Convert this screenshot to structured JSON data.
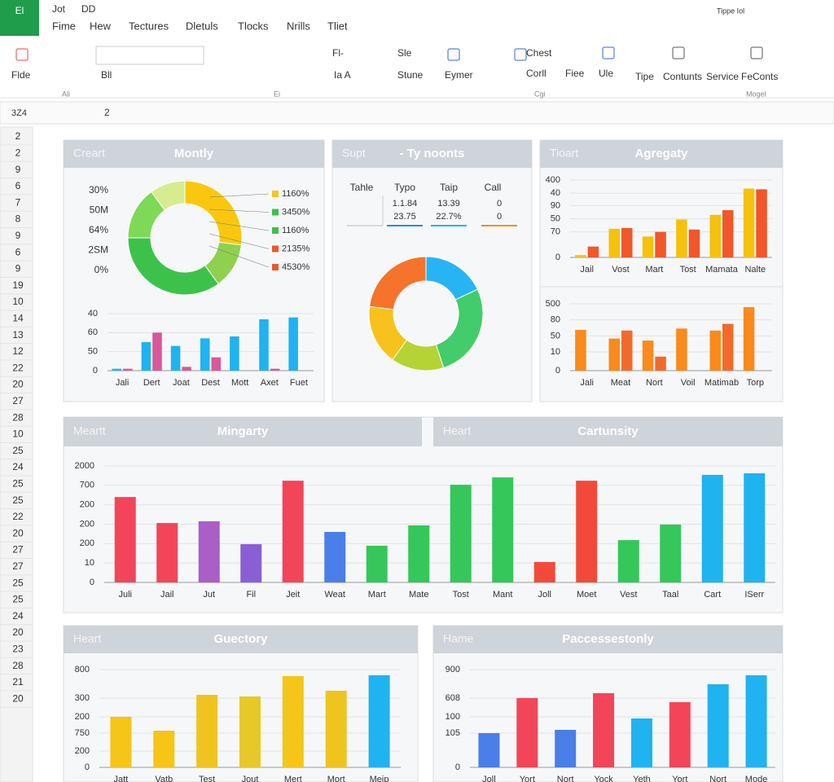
{
  "app": {
    "logo": "El",
    "quick1": "Jot",
    "quick2": "DD",
    "account": "Tippe Iol",
    "menu": [
      "Fime",
      "Hew",
      "Tectures",
      "Dletuls",
      "Tlocks",
      "Nrills",
      "Tliet"
    ],
    "ribbon": [
      "Flde",
      "Bll",
      "Fl-",
      "Sle",
      "Ia A",
      "Stune",
      "Eymer",
      "Chest",
      "Corll",
      "Fiee",
      "Ule",
      "Tipe",
      "Contunts",
      "Service",
      "FeConts"
    ],
    "group_labels": [
      "Ali",
      "Ei",
      "Cgi",
      "Mogel"
    ],
    "name_box": "3Z4",
    "formula": "2"
  },
  "rows": [
    "2",
    "2",
    "9",
    "6",
    "7",
    "8",
    "9",
    "6",
    "9",
    "19",
    "10",
    "14",
    "13",
    "12",
    "22",
    "20",
    "27",
    "28",
    "10",
    "25",
    "24",
    "25",
    "25",
    "22",
    "20",
    "27",
    "27",
    "25",
    "25",
    "24",
    "20",
    "23",
    "28",
    "21",
    "20"
  ],
  "panels": [
    {
      "label": "Creart",
      "title": "Montly"
    },
    {
      "label": "Supt",
      "title": "- Ty noonts"
    },
    {
      "label": "Tioart",
      "title": "Agregaty"
    },
    {
      "label": "Meartt",
      "title": "Mingarty"
    },
    {
      "label": "Heart",
      "title": "Cartunsity"
    },
    {
      "label": "Heart",
      "title": "Guectory"
    },
    {
      "label": "Hame",
      "title": "Paccessestonly"
    }
  ],
  "table": {
    "header": [
      "Tahle",
      "Typo",
      "Taip",
      "Call"
    ],
    "rows": [
      [
        "1.1.84",
        "13.39",
        "0"
      ],
      [
        "23.75",
        "22.7%",
        "0"
      ]
    ]
  },
  "chart_data": [
    {
      "type": "pie",
      "categories": [
        "1160%",
        "3450%",
        "1160%",
        "2135%",
        "4530%"
      ],
      "values": [
        27,
        13,
        35,
        15,
        10
      ],
      "colors": [
        "#f9c80e",
        "#8fd14f",
        "#3cc24a",
        "#7ed957",
        "#d7ec8f"
      ],
      "legend_colors": [
        "#f5c518",
        "#3cc24a",
        "#3cc24a",
        "#f0572a",
        "#f0572a"
      ],
      "side_labels": [
        "30%",
        "50M",
        "64%",
        "2SM",
        "0%"
      ]
    },
    {
      "type": "bar",
      "categories": [
        "Jali",
        "Dert",
        "Joat",
        "Dest",
        "Mott",
        "Axet",
        "Fuet"
      ],
      "series": [
        {
          "color": "#1fb3f0",
          "values": [
            1,
            15,
            13,
            17,
            18,
            27,
            28
          ]
        },
        {
          "color": "#d9579b",
          "values": [
            1,
            20,
            2,
            7,
            null,
            1,
            null
          ]
        }
      ],
      "ylim": [
        0,
        30
      ],
      "yticks": [
        {
          "value": 30,
          "label": "40"
        },
        {
          "value": 20,
          "label": "60"
        },
        {
          "value": 10,
          "label": "50"
        },
        0
      ],
      "grid": true
    },
    {
      "type": "pie",
      "values": [
        18,
        27,
        15,
        17,
        23
      ],
      "colors": [
        "#27b4f5",
        "#43cc6b",
        "#b5d334",
        "#f6c21b",
        "#f5732a"
      ]
    },
    {
      "type": "bar",
      "categories": [
        "Jail",
        "Vost",
        "Mart",
        "Tost",
        "Mamata",
        "Nalte"
      ],
      "series": [
        {
          "color": "#f4c20d",
          "values": [
            3,
            37,
            27,
            49,
            55,
            89
          ]
        },
        {
          "color": "#f0572a",
          "values": [
            14,
            38,
            33,
            36,
            61,
            88
          ]
        }
      ],
      "ylim": [
        0,
        100
      ],
      "yticks": [
        {
          "value": 100,
          "label": "400"
        },
        {
          "value": 83,
          "label": "40"
        },
        {
          "value": 67,
          "label": "90"
        },
        50,
        {
          "value": 33,
          "label": "70"
        },
        0
      ],
      "grid": true
    },
    {
      "type": "bar",
      "categories": [
        "Jali",
        "Meat",
        "Nort",
        "Voil",
        "Matimab",
        "Torp"
      ],
      "series": [
        {
          "color": "#f98a1c",
          "values": [
            61,
            48,
            45,
            63,
            60,
            95
          ]
        },
        {
          "color": "#f26a2a",
          "values": [
            null,
            60,
            21,
            null,
            70,
            null
          ]
        }
      ],
      "ylim": [
        0,
        100
      ],
      "yticks": [
        {
          "value": 100,
          "label": "500"
        },
        {
          "value": 76,
          "label": "80"
        },
        {
          "value": 52,
          "label": "50"
        },
        {
          "value": 28,
          "label": "10"
        },
        0
      ],
      "grid": true
    },
    {
      "type": "bar",
      "categories": [
        "Juli",
        "Jail",
        "Jut",
        "Fil",
        "Jeit",
        "Weat",
        "Mart",
        "Mate",
        "Tost",
        "Mant",
        "Joll",
        "Moet",
        "Vest",
        "Taal",
        "Cart",
        "ISerr"
      ],
      "series": [
        {
          "values": [
            440,
            306,
            315,
            197,
            524,
            260,
            189,
            294,
            503,
            541,
            105,
            524,
            218,
            298,
            554,
            562
          ],
          "colors": [
            "#f2455a",
            "#f2455a",
            "#a95fc6",
            "#8a5fd6",
            "#f2455a",
            "#4a7ee8",
            "#35c75a",
            "#35c75a",
            "#35c75a",
            "#35c75a",
            "#f24a3a",
            "#f24a3a",
            "#35c75a",
            "#35c75a",
            "#1fb3f0",
            "#1fb3f0"
          ]
        }
      ],
      "ylim": [
        0,
        600
      ],
      "yticks": [
        {
          "value": 600,
          "label": "2000"
        },
        {
          "value": 500,
          "label": "700"
        },
        {
          "value": 400,
          "label": "200"
        },
        {
          "value": 300,
          "label": "200"
        },
        {
          "value": 200,
          "label": "200"
        },
        {
          "value": 100,
          "label": "10"
        },
        0
      ],
      "grid": true
    },
    {
      "type": "bar",
      "categories": [
        "Jatt",
        "Vatb",
        "Test",
        "Jout",
        "Mert",
        "Mort",
        "Meip"
      ],
      "series": [
        {
          "values": [
            310,
            225,
            445,
            435,
            560,
            470,
            565
          ],
          "colors": [
            "#f5c518",
            "#f5c518",
            "#f0c420",
            "#e8c828",
            "#f5c518",
            "#eec41e",
            "#1fb3f0"
          ]
        }
      ],
      "ylim": [
        0,
        600
      ],
      "yticks": [
        {
          "value": 600,
          "label": "800"
        },
        {
          "value": 425,
          "label": "300"
        },
        {
          "value": 310,
          "label": "200"
        },
        {
          "value": 210,
          "label": "750"
        },
        {
          "value": 100,
          "label": "200"
        },
        0
      ],
      "grid": true
    },
    {
      "type": "bar",
      "categories": [
        "Joll",
        "Yort",
        "Nort",
        "Yock",
        "Yeth",
        "Yort",
        "Nort",
        "Mode"
      ],
      "series": [
        {
          "values": [
            210,
            425,
            230,
            455,
            300,
            400,
            510,
            565
          ],
          "colors": [
            "#4a7ee8",
            "#f2455a",
            "#4a7ee8",
            "#f2455a",
            "#1fb3f0",
            "#f2455a",
            "#1fb3f0",
            "#1fb3f0"
          ]
        }
      ],
      "ylim": [
        0,
        600
      ],
      "yticks": [
        {
          "value": 600,
          "label": "900"
        },
        {
          "value": 425,
          "label": "608"
        },
        {
          "value": 310,
          "label": "100"
        },
        {
          "value": 210,
          "label": "105"
        },
        0
      ],
      "grid": true
    }
  ]
}
